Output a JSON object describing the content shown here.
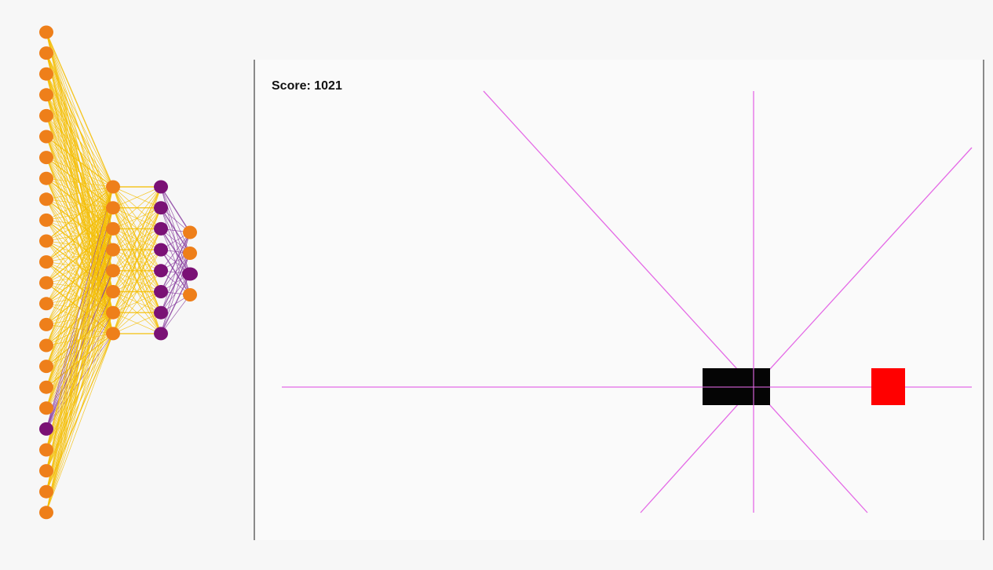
{
  "score": {
    "label": "Score:",
    "value": "1021"
  },
  "colors": {
    "background": "#f7f7f7",
    "game_background": "#fafafa",
    "border": "#8a8a8a",
    "neuron_active": "#ee7f1a",
    "neuron_inactive": "#7a1175",
    "weight_positive": "#f5bd00",
    "weight_negative": "#8a3fa0",
    "ray": "#e46ae6",
    "player": "#050505",
    "obstacle": "#ff0000"
  },
  "network": {
    "layers": [
      {
        "name": "input",
        "neurons": [
          "active",
          "active",
          "active",
          "active",
          "active",
          "active",
          "active",
          "active",
          "active",
          "active",
          "active",
          "active",
          "active",
          "active",
          "active",
          "active",
          "active",
          "active",
          "active",
          "inactive",
          "active",
          "active",
          "active",
          "active"
        ]
      },
      {
        "name": "hidden-1",
        "neurons": [
          "active",
          "active",
          "active",
          "active",
          "active",
          "active",
          "active",
          "active"
        ]
      },
      {
        "name": "hidden-2",
        "neurons": [
          "inactive",
          "inactive",
          "inactive",
          "inactive",
          "inactive",
          "inactive",
          "inactive",
          "inactive"
        ]
      },
      {
        "name": "output",
        "neurons": [
          "active",
          "active",
          "inactive",
          "active"
        ]
      }
    ]
  },
  "game": {
    "player": {
      "name": "player-block"
    },
    "obstacle": {
      "name": "obstacle-block"
    },
    "rays": [
      "ray-horizontal",
      "ray-vertical",
      "ray-diagonal-up-left",
      "ray-diagonal-up-right",
      "ray-diagonal-down-left",
      "ray-diagonal-down-right"
    ]
  }
}
